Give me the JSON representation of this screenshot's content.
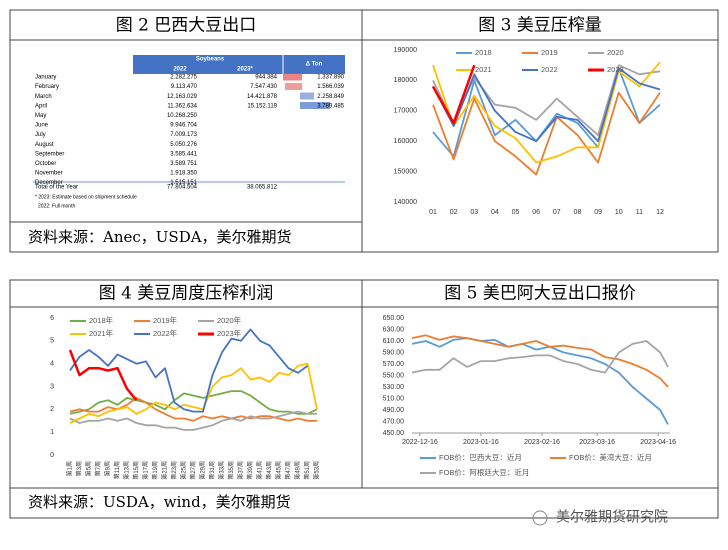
{
  "table": {
    "title": "图 2 巴西大豆出口",
    "header": {
      "group": "Soybeans",
      "cols": [
        "2022",
        "2023*"
      ],
      "delta": "Δ Ton"
    },
    "rows": [
      [
        "January",
        "2.282.275",
        "944.384",
        "1.337.890"
      ],
      [
        "February",
        "9.113.470",
        "7.547.430",
        "1.566.039"
      ],
      [
        "March",
        "12.163.029",
        "14.421.878",
        "2.258.849"
      ],
      [
        "April",
        "11.362.634",
        "15.152.119",
        "3.789.485"
      ],
      [
        "May",
        "10.268.250"
      ],
      [
        "June",
        "9.946.704"
      ],
      [
        "July",
        "7.009.173"
      ],
      [
        "August",
        "5.050.276"
      ],
      [
        "September",
        "3.585.441"
      ],
      [
        "October",
        "3.589.751"
      ],
      [
        "November",
        "1.918.350"
      ],
      [
        "December",
        "1.515.151"
      ]
    ],
    "total": [
      "Total of the Year",
      "77.804.504",
      "38.065.812"
    ],
    "notes": [
      "* 2023: Estimate based on shipment schedule",
      "2022: Full month"
    ]
  },
  "sources": [
    "资料来源：Anec，USDA，美尔雅期货",
    "资料来源：USDA，wind，美尔雅期货"
  ],
  "watermark": "美尔雅期货研究院",
  "chart_data": [
    {
      "type": "line",
      "title": "图 3 美豆压榨量",
      "categories": [
        "01",
        "02",
        "03",
        "04",
        "05",
        "06",
        "07",
        "08",
        "09",
        "10",
        "11",
        "12"
      ],
      "ylim": [
        140000,
        190000
      ],
      "yticks": [
        140000,
        150000,
        160000,
        170000,
        180000,
        190000
      ],
      "grid": false,
      "series": [
        {
          "name": "2018",
          "color": "#5b9bd5",
          "values": [
            163000,
            155000,
            180000,
            162000,
            167000,
            160000,
            169000,
            166000,
            158000,
            184000,
            166000,
            172000
          ]
        },
        {
          "name": "2019",
          "color": "#ed7d31",
          "values": [
            172000,
            154000,
            174000,
            160000,
            155000,
            149000,
            168000,
            162000,
            153000,
            176000,
            166000,
            176000
          ]
        },
        {
          "name": "2020",
          "color": "#a5a5a5",
          "values": [
            180000,
            166000,
            181000,
            172000,
            171000,
            167000,
            174000,
            168000,
            162000,
            185000,
            182000,
            183000
          ]
        },
        {
          "name": "2021",
          "color": "#ffc000",
          "values": [
            185000,
            165000,
            175000,
            165000,
            161000,
            153000,
            155000,
            158000,
            158000,
            183000,
            178000,
            186000
          ]
        },
        {
          "name": "2022",
          "color": "#4472c4",
          "values": [
            178000,
            165000,
            182000,
            170000,
            163000,
            160000,
            168000,
            167000,
            160000,
            184000,
            179000,
            177000
          ]
        },
        {
          "name": "2023",
          "color": "#ff0000",
          "values": [
            178000,
            166000,
            185000,
            null,
            null,
            null,
            null,
            null,
            null,
            null,
            null,
            null
          ]
        }
      ]
    },
    {
      "type": "line",
      "title": "图 4 美豆周度压榨利润",
      "categories": [
        "第1周",
        "第3周",
        "第5周",
        "第7周",
        "第9周",
        "第11周",
        "第13周",
        "第15周",
        "第17周",
        "第19周",
        "第21周",
        "第23周",
        "第25周",
        "第27周",
        "第29周",
        "第31周",
        "第33周",
        "第35周",
        "第37周",
        "第39周",
        "第41周",
        "第43周",
        "第45周",
        "第47周",
        "第49周",
        "第51周",
        "第53周"
      ],
      "ylim": [
        0,
        6
      ],
      "yticks": [
        0,
        1,
        2,
        3,
        4,
        5,
        6
      ],
      "grid": false,
      "series": [
        {
          "name": "2018年",
          "color": "#70ad47",
          "values": [
            1.8,
            1.9,
            2.0,
            2.3,
            2.4,
            2.2,
            2.5,
            2.4,
            2.3,
            2.2,
            2.0,
            2.4,
            2.7,
            2.6,
            2.5,
            2.6,
            2.7,
            2.8,
            2.8,
            2.6,
            2.3,
            2.0,
            1.9,
            1.9,
            1.8,
            1.8,
            2.0
          ]
        },
        {
          "name": "2019年",
          "color": "#ed7d31",
          "values": [
            1.9,
            2.0,
            1.9,
            1.9,
            2.1,
            2.0,
            2.2,
            2.5,
            2.3,
            2.0,
            1.8,
            1.6,
            1.6,
            1.5,
            1.7,
            1.6,
            1.7,
            1.6,
            1.7,
            1.6,
            1.7,
            1.7,
            1.6,
            1.5,
            1.6,
            1.5,
            1.5
          ]
        },
        {
          "name": "2020年",
          "color": "#a5a5a5",
          "values": [
            1.6,
            1.4,
            1.5,
            1.5,
            1.6,
            1.5,
            1.6,
            1.4,
            1.3,
            1.3,
            1.2,
            1.2,
            1.1,
            1.1,
            1.2,
            1.3,
            1.5,
            1.6,
            1.5,
            1.7,
            1.6,
            1.6,
            1.7,
            1.8,
            1.9,
            1.8,
            1.8
          ]
        },
        {
          "name": "2021年",
          "color": "#ffc000",
          "values": [
            1.4,
            1.6,
            1.8,
            1.7,
            1.9,
            2.0,
            2.1,
            1.8,
            2.0,
            2.3,
            2.2,
            2.0,
            2.2,
            2.1,
            2.0,
            3.0,
            3.4,
            3.5,
            3.8,
            3.3,
            3.4,
            3.2,
            3.6,
            3.5,
            3.9,
            4.0,
            2.0
          ]
        },
        {
          "name": "2022年",
          "color": "#4472c4",
          "values": [
            3.7,
            4.3,
            4.6,
            4.3,
            3.9,
            4.4,
            4.2,
            4.0,
            4.1,
            3.4,
            3.8,
            2.3,
            2.0,
            1.9,
            1.9,
            3.5,
            4.5,
            5.1,
            5.0,
            5.5,
            5.0,
            4.8,
            4.3,
            3.8,
            3.6,
            3.9,
            null
          ]
        },
        {
          "name": "2023年",
          "color": "#ff0000",
          "values": [
            4.6,
            3.5,
            3.8,
            3.8,
            3.7,
            3.8,
            2.9,
            2.4,
            null,
            null,
            null,
            null,
            null,
            null,
            null,
            null,
            null,
            null,
            null,
            null,
            null,
            null,
            null,
            null,
            null,
            null,
            null
          ]
        }
      ]
    },
    {
      "type": "timeline",
      "title": "图 5 美巴阿大豆出口报价",
      "x": [
        "2022-12-12",
        "2022-12-19",
        "2022-12-26",
        "2023-01-02",
        "2023-01-09",
        "2023-01-16",
        "2023-01-23",
        "2023-01-30",
        "2023-02-06",
        "2023-02-13",
        "2023-02-20",
        "2023-02-27",
        "2023-03-06",
        "2023-03-13",
        "2023-03-20",
        "2023-03-27",
        "2023-04-03",
        "2023-04-10",
        "2023-04-17",
        "2023-04-21"
      ],
      "xlim": [
        "2022-12-12",
        "2023-04-22"
      ],
      "xticks": [
        "2022-12-16",
        "2023-01-16",
        "2023-02-16",
        "2023-03-16",
        "2023-04-16"
      ],
      "ylim": [
        450,
        650
      ],
      "yticks": [
        {
          "value": 450,
          "label": "450.00"
        },
        {
          "value": 470,
          "label": "470.00"
        },
        {
          "value": 490,
          "label": "490.00"
        },
        {
          "value": 510,
          "label": "510.00"
        },
        {
          "value": 530,
          "label": "530.00"
        },
        {
          "value": 550,
          "label": "550.00"
        },
        {
          "value": 570,
          "label": "570.00"
        },
        {
          "value": 590,
          "label": "590.00"
        },
        {
          "value": 610,
          "label": "610.00"
        },
        {
          "value": 630,
          "label": "630.00"
        },
        {
          "value": 650,
          "label": "650.00"
        }
      ],
      "grid": false,
      "series": [
        {
          "name": "FOB价：巴西大豆：近月",
          "color": "#5b9bd5",
          "values": [
            605,
            610,
            600,
            612,
            615,
            610,
            612,
            600,
            605,
            595,
            600,
            590,
            585,
            580,
            570,
            555,
            530,
            510,
            490,
            465
          ]
        },
        {
          "name": "FOB价：美湾大豆：近月",
          "color": "#ed7d31",
          "values": [
            615,
            620,
            612,
            618,
            615,
            610,
            605,
            600,
            605,
            610,
            600,
            602,
            598,
            595,
            582,
            578,
            570,
            560,
            545,
            530
          ]
        },
        {
          "name": "FOB价：阿根廷大豆：近月",
          "color": "#a5a5a5",
          "values": [
            555,
            560,
            560,
            580,
            565,
            575,
            575,
            580,
            582,
            585,
            585,
            575,
            570,
            560,
            555,
            590,
            605,
            610,
            590,
            565
          ]
        }
      ]
    }
  ]
}
